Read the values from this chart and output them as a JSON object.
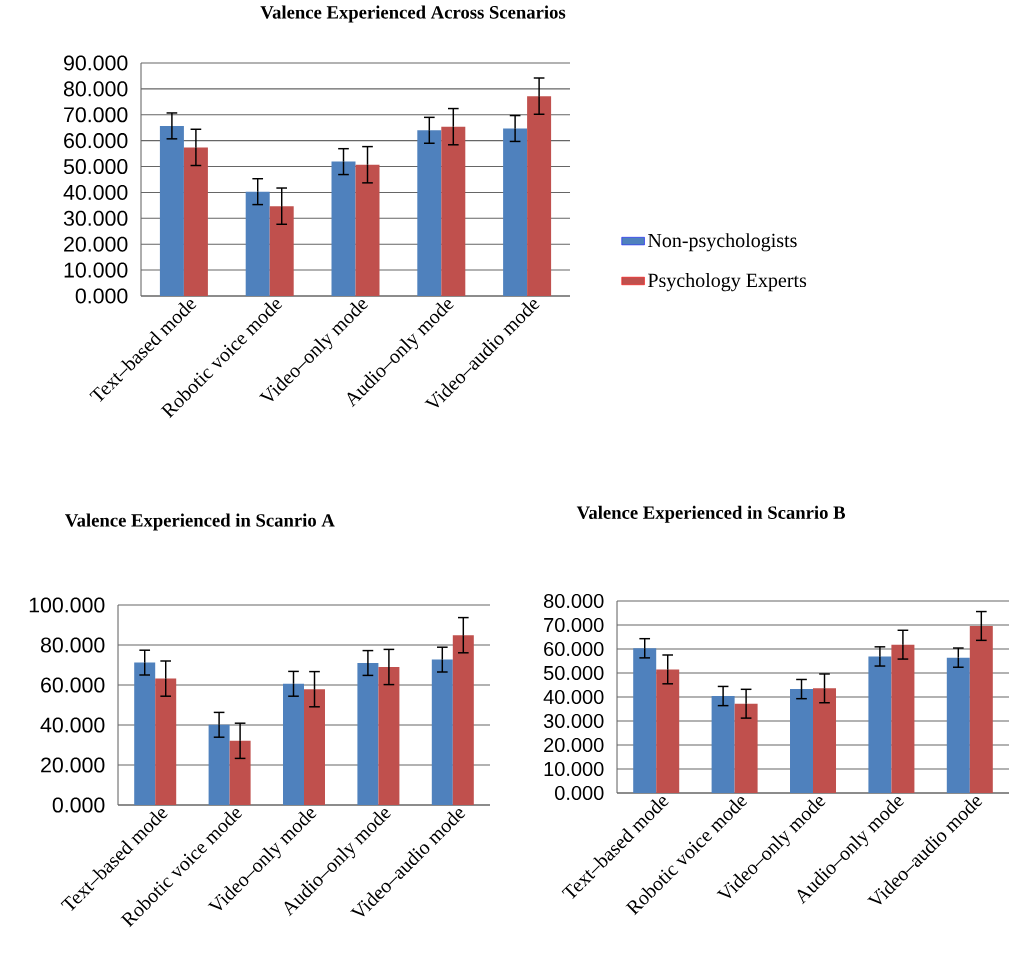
{
  "chart_data": [
    {
      "type": "bar",
      "title": "Valence Experienced Across Scenarios",
      "categories": [
        "Text–based mode",
        "Robotic voice mode",
        "Video–only mode",
        "Audio–only mode",
        "Video–audio mode"
      ],
      "series": [
        {
          "name": "Non-psychologists",
          "color": "#4f81bd",
          "values": [
            65.7,
            40.3,
            51.9,
            64.0,
            64.7
          ],
          "errors": [
            5,
            5,
            5,
            5,
            5
          ]
        },
        {
          "name": "Psychology Experts",
          "color": "#c0504d",
          "values": [
            57.4,
            34.7,
            50.7,
            65.4,
            77.2
          ],
          "errors": [
            7,
            7,
            7,
            7,
            7
          ]
        }
      ],
      "ylim": [
        0,
        90
      ],
      "yticks": [
        {
          "value": 0,
          "label": "0.000"
        },
        {
          "value": 10,
          "label": "10.000"
        },
        {
          "value": 20,
          "label": "20.000"
        },
        {
          "value": 30,
          "label": "30.000"
        },
        {
          "value": 40,
          "label": "40.000"
        },
        {
          "value": 50,
          "label": "50.000"
        },
        {
          "value": 60,
          "label": "60.000"
        },
        {
          "value": 70,
          "label": "70.000"
        },
        {
          "value": 80,
          "label": "80.000"
        },
        {
          "value": 90,
          "label": "90.000"
        }
      ],
      "grid": "y",
      "legend": "right"
    },
    {
      "type": "bar",
      "title": "Valence Experienced in Scanrio A",
      "categories": [
        "Text–based mode",
        "Robotic voice mode",
        "Video–only mode",
        "Audio–only mode",
        "Video–audio mode"
      ],
      "series": [
        {
          "color": "#4f81bd",
          "values": [
            71.2,
            40.1,
            60.6,
            71.0,
            72.7
          ],
          "errors": [
            6.2,
            6.2,
            6.2,
            6.2,
            6.2
          ]
        },
        {
          "color": "#c0504d",
          "values": [
            63.2,
            32.1,
            57.9,
            69.0,
            84.9
          ],
          "errors": [
            8.8,
            8.8,
            8.8,
            8.8,
            8.8
          ]
        }
      ],
      "ylim": [
        0,
        100
      ],
      "yticks": [
        {
          "value": 0,
          "label": "0.000"
        },
        {
          "value": 20,
          "label": "20.000"
        },
        {
          "value": 40,
          "label": "40.000"
        },
        {
          "value": 60,
          "label": "60.000"
        },
        {
          "value": 80,
          "label": "80.000"
        },
        {
          "value": 100,
          "label": "100.000"
        }
      ],
      "grid": "y"
    },
    {
      "type": "bar",
      "title": "Valence Experienced in Scanrio B",
      "categories": [
        "Text–based mode",
        "Robotic voice mode",
        "Video–only mode",
        "Audio–only mode",
        "Video–audio mode"
      ],
      "series": [
        {
          "color": "#4f81bd",
          "values": [
            60.3,
            40.4,
            43.3,
            56.9,
            56.4
          ],
          "errors": [
            4,
            4,
            4,
            4,
            4
          ]
        },
        {
          "color": "#c0504d",
          "values": [
            51.5,
            37.2,
            43.6,
            61.8,
            69.6
          ],
          "errors": [
            6,
            6,
            6,
            6,
            6
          ]
        }
      ],
      "ylim": [
        0,
        80
      ],
      "yticks": [
        {
          "value": 0,
          "label": "0.000"
        },
        {
          "value": 10,
          "label": "10.000"
        },
        {
          "value": 20,
          "label": "20.000"
        },
        {
          "value": 30,
          "label": "30.000"
        },
        {
          "value": 40,
          "label": "40.000"
        },
        {
          "value": 50,
          "label": "50.000"
        },
        {
          "value": 60,
          "label": "60.000"
        },
        {
          "value": 70,
          "label": "70.000"
        },
        {
          "value": 80,
          "label": "80.000"
        }
      ],
      "grid": "y"
    }
  ]
}
